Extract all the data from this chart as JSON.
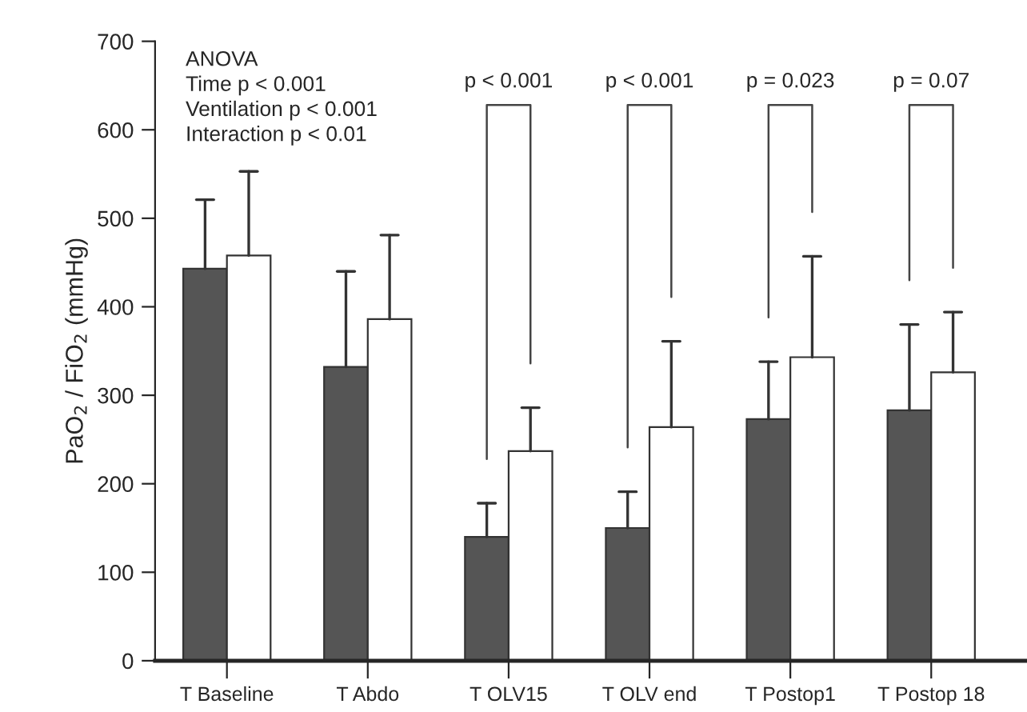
{
  "chart_data": {
    "type": "bar",
    "ylabel": "PaO$_{2}$ / FiO$_{2}$ (mmHg)",
    "categories": [
      "T Baseline",
      "T Abdo",
      "T OLV15",
      "T OLV end",
      "T Postop1",
      "T Postop 18"
    ],
    "series": [
      {
        "color": "#555555",
        "values": [
          443,
          332,
          140,
          150,
          273,
          283
        ],
        "errors": [
          [
            443,
            521
          ],
          [
            332,
            440
          ],
          [
            140,
            178
          ],
          [
            150,
            191
          ],
          [
            273,
            338
          ],
          [
            283,
            380
          ]
        ]
      },
      {
        "color": "#ffffff",
        "values": [
          458,
          386,
          237,
          264,
          343,
          326
        ],
        "errors": [
          [
            458,
            553
          ],
          [
            386,
            481
          ],
          [
            237,
            286
          ],
          [
            264,
            361
          ],
          [
            343,
            457
          ],
          [
            326,
            394
          ]
        ]
      }
    ],
    "ylim": [
      0,
      700
    ],
    "yticks": [
      0,
      100,
      200,
      300,
      400,
      500,
      600,
      700
    ],
    "grid": false,
    "legend": false,
    "annotations": [
      "ANOVA\nTime p < 0.001\nVentilation p < 0.001\nInteraction p < 0.01",
      "p < 0.001",
      "p < 0.001",
      "p = 0.023",
      "p = 0.07"
    ]
  }
}
